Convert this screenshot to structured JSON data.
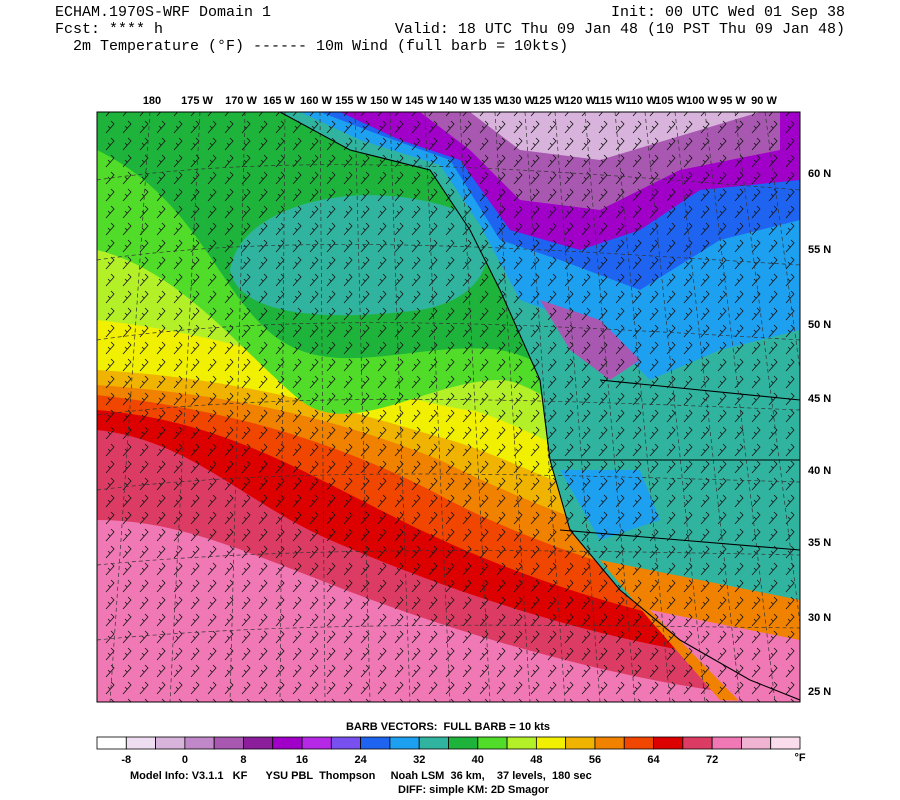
{
  "header": {
    "title": "ECHAM.1970S-WRF Domain 1",
    "init": "Init: 00 UTC Wed 01 Sep 38",
    "forecast": "Fcst: **** h",
    "valid": "Valid: 18 UTC Thu 09 Jan 48 (10 PST Thu 09 Jan 48)",
    "fields": "2m Temperature (°F) ------ 10m Wind (full barb = 10kts)"
  },
  "map": {
    "longitude_labels": [
      "180",
      "175 W",
      "170 W",
      "165 W",
      "160 W",
      "155 W",
      "150 W",
      "145 W",
      "140 W",
      "135 W",
      "130 W",
      "125 W",
      "120 W",
      "115 W",
      "110 W",
      "105 W",
      "100 W",
      "95 W",
      "90 W"
    ],
    "latitude_labels": [
      "60 N",
      "55 N",
      "50 N",
      "45 N",
      "40 N",
      "35 N",
      "30 N",
      "25 N"
    ]
  },
  "colorbar": {
    "caption": "BARB VECTORS:  FULL BARB = 10 kts",
    "colors": [
      "#ffffff",
      "#eedcf0",
      "#d8b4dc",
      "#c088c8",
      "#a858b0",
      "#8c1e9c",
      "#a000c8",
      "#b428e6",
      "#7850f0",
      "#1e64f0",
      "#1ea0f0",
      "#30b4a0",
      "#1eb43c",
      "#50dc28",
      "#b4f028",
      "#f0f000",
      "#f0b400",
      "#f08200",
      "#f04600",
      "#dc0000",
      "#dc3c64",
      "#f078b4",
      "#f0b4d2",
      "#fadcec"
    ],
    "ticks": [
      -8,
      0,
      8,
      16,
      24,
      32,
      40,
      48,
      56,
      64,
      72
    ],
    "unit": "°F"
  },
  "footer": {
    "model_info": "Model Info: V3.1.1   KF      YSU PBL  Thompson     Noah LSM  36 km,    37 levels,  180 sec",
    "diff": "DIFF: simple KM: 2D Smagor"
  }
}
